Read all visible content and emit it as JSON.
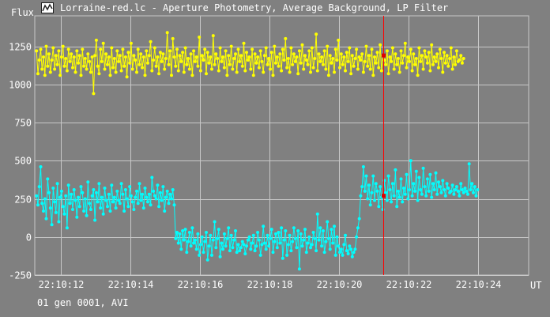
{
  "window": {
    "title": "Lorraine-red.lc - Aperture Photometry, Average Background, LP Filter",
    "icon": "lightcurve-app-icon"
  },
  "footer": {
    "text": "01 gen 0001, AVI"
  },
  "colors": {
    "background": "#808080",
    "grid": "#c8c8c8",
    "text": "#ffffff",
    "series_target": "#ffff00",
    "series_comparison": "#00ffff",
    "cursor": "#ff0000",
    "cursor_marker": "#e00000"
  },
  "chart_data": {
    "type": "line",
    "ylabel": "Flux",
    "xlabel": "UT",
    "ylim": [
      -250,
      1450
    ],
    "yticks": [
      -250,
      0,
      250,
      500,
      750,
      1000,
      1250
    ],
    "xlim_seconds": [
      11.25,
      25.45
    ],
    "xticks": [
      {
        "t": 12,
        "label": "22:10:12"
      },
      {
        "t": 14,
        "label": "22:10:14"
      },
      {
        "t": 16,
        "label": "22:10:16"
      },
      {
        "t": 18,
        "label": "22:10:18"
      },
      {
        "t": 20,
        "label": "22:10:20"
      },
      {
        "t": 22,
        "label": "22:10:22"
      },
      {
        "t": 24,
        "label": "22:10:24"
      }
    ],
    "grid": true,
    "cursor_time_seconds": 21.28,
    "cursor_values": [
      1190,
      270
    ],
    "series": [
      {
        "start_seconds": 11.3,
        "step_seconds": 0.04,
        "values": [
          1220,
          1070,
          1160,
          1230,
          1100,
          1180,
          1060,
          1250,
          1120,
          1200,
          1080,
          1160,
          1240,
          1100,
          1190,
          1130,
          1220,
          1060,
          1180,
          1250,
          1120,
          1170,
          1090,
          1230,
          1150,
          1200,
          1110,
          1180,
          1080,
          1220,
          1140,
          1190,
          1060,
          1230,
          1120,
          1170,
          1100,
          1200,
          1150,
          1080,
          1180,
          940,
          1190,
          1290,
          1120,
          1070,
          1230,
          1150,
          1270,
          1100,
          1200,
          1130,
          1180,
          1060,
          1240,
          1110,
          1170,
          1080,
          1220,
          1150,
          1190,
          1090,
          1230,
          1120,
          1180,
          1050,
          1210,
          1140,
          1270,
          1100,
          1190,
          1160,
          1080,
          1230,
          1130,
          1200,
          1110,
          1180,
          1060,
          1220,
          1140,
          1190,
          1280,
          1090,
          1160,
          1240,
          1120,
          1180,
          1070,
          1210,
          1150,
          1200,
          1100,
          1170,
          1340,
          1130,
          1220,
          1060,
          1300,
          1180,
          1120,
          1230,
          1090,
          1190,
          1150,
          1210,
          1080,
          1240,
          1130,
          1170,
          1100,
          1200,
          1060,
          1220,
          1150,
          1180,
          1120,
          1310,
          1090,
          1190,
          1160,
          1230,
          1070,
          1210,
          1140,
          1180,
          1100,
          1320,
          1130,
          1200,
          1170,
          1090,
          1240,
          1150,
          1180,
          1110,
          1220,
          1060,
          1190,
          1130,
          1250,
          1100,
          1170,
          1200,
          1080,
          1230,
          1150,
          1190,
          1120,
          1270,
          1090,
          1210,
          1160,
          1180,
          1100,
          1230,
          1060,
          1200,
          1140,
          1180,
          1110,
          1220,
          1150,
          1080,
          1190,
          1240,
          1130,
          1170,
          1100,
          1210,
          1060,
          1250,
          1140,
          1180,
          1120,
          1200,
          1090,
          1230,
          1160,
          1300,
          1110,
          1170,
          1080,
          1240,
          1130,
          1200,
          1150,
          1180,
          1070,
          1220,
          1140,
          1260,
          1100,
          1190,
          1160,
          1130,
          1220,
          1080,
          1240,
          1110,
          1170,
          1330,
          1090,
          1200,
          1150,
          1180,
          1130,
          1220,
          1100,
          1250,
          1060,
          1190,
          1140,
          1170,
          1080,
          1230,
          1160,
          1290,
          1110,
          1200,
          1130,
          1180,
          1090,
          1210,
          1150,
          1240,
          1070,
          1190,
          1120,
          1170,
          1230,
          1100,
          1180,
          1160,
          1200,
          1080,
          1150,
          1250,
          1120,
          1190,
          1100,
          1230,
          1060,
          1180,
          1140,
          1210,
          1110,
          1260,
          1090,
          1190,
          1160,
          1130,
          1220,
          1070,
          1180,
          1150,
          1240,
          1100,
          1200,
          1130,
          1170,
          1080,
          1220,
          1140,
          1190,
          1270,
          1110,
          1180,
          1150,
          1230,
          1090,
          1200,
          1130,
          1170,
          1060,
          1240,
          1150,
          1190,
          1100,
          1220,
          1180,
          1140,
          1210,
          1090,
          1260,
          1130,
          1180,
          1150,
          1200,
          1110,
          1230,
          1170,
          1080,
          1210,
          1140,
          1190,
          1120,
          1170,
          1240,
          1100,
          1180,
          1130,
          1220,
          1150,
          1160,
          1190,
          1140,
          1170
        ]
      },
      {
        "start_seconds": 11.3,
        "step_seconds": 0.04,
        "values": [
          270,
          210,
          330,
          460,
          220,
          170,
          250,
          120,
          380,
          290,
          190,
          80,
          320,
          230,
          160,
          350,
          100,
          260,
          300,
          200,
          150,
          270,
          60,
          340,
          220,
          280,
          180,
          310,
          240,
          130,
          260,
          200,
          330,
          290,
          170,
          250,
          140,
          360,
          220,
          180,
          270,
          310,
          110,
          290,
          230,
          350,
          190,
          260,
          150,
          320,
          240,
          200,
          280,
          170,
          340,
          230,
          260,
          190,
          300,
          240,
          220,
          350,
          280,
          170,
          310,
          250,
          200,
          330,
          270,
          230,
          180,
          260,
          300,
          220,
          350,
          240,
          280,
          190,
          320,
          260,
          230,
          280,
          210,
          390,
          300,
          270,
          250,
          340,
          200,
          290,
          240,
          330,
          170,
          260,
          300,
          220,
          280,
          250,
          310,
          210,
          -10,
          30,
          -40,
          20,
          -80,
          40,
          -20,
          50,
          -100,
          -30,
          30,
          -60,
          60,
          -40,
          -20,
          -80,
          20,
          -120,
          -50,
          0,
          -100,
          -30,
          30,
          -150,
          -60,
          10,
          -120,
          -20,
          100,
          -70,
          -10,
          50,
          -130,
          -40,
          -80,
          20,
          -60,
          -10,
          60,
          -90,
          10,
          -70,
          -20,
          40,
          -100,
          -50,
          -90,
          -70,
          -30,
          -50,
          -110,
          -60,
          -20,
          0,
          -80,
          -40,
          10,
          -90,
          -60,
          30,
          -20,
          -120,
          -50,
          70,
          -40,
          -80,
          10,
          -60,
          -10,
          50,
          -100,
          -30,
          20,
          -70,
          30,
          -40,
          60,
          -140,
          -20,
          40,
          -120,
          -50,
          10,
          -90,
          -30,
          60,
          -10,
          -70,
          40,
          -210,
          20,
          -60,
          -20,
          50,
          -100,
          -40,
          0,
          -70,
          -50,
          30,
          -10,
          -90,
          150,
          -20,
          60,
          -60,
          40,
          -100,
          -30,
          100,
          -10,
          -80,
          50,
          -40,
          70,
          -120,
          0,
          -60,
          -100,
          -80,
          -120,
          -50,
          10,
          -90,
          -110,
          -60,
          -80,
          -130,
          -100,
          -80,
          0,
          60,
          120,
          270,
          330,
          460,
          300,
          400,
          250,
          340,
          210,
          290,
          400,
          240,
          350,
          300,
          200,
          330,
          260,
          180,
          370,
          290,
          240,
          400,
          310,
          230,
          350,
          270,
          440,
          200,
          300,
          260,
          380,
          230,
          320,
          280,
          410,
          250,
          310,
          500,
          270,
          350,
          300,
          430,
          240,
          390,
          310,
          280,
          450,
          330,
          270,
          380,
          300,
          410,
          260,
          350,
          310,
          420,
          280,
          360,
          330,
          290,
          370,
          310,
          270,
          350,
          320,
          290,
          300,
          340,
          280,
          310,
          330,
          300,
          270,
          350,
          310,
          290,
          320,
          300,
          280,
          480,
          310,
          350,
          290,
          330,
          270,
          310
        ]
      }
    ]
  }
}
